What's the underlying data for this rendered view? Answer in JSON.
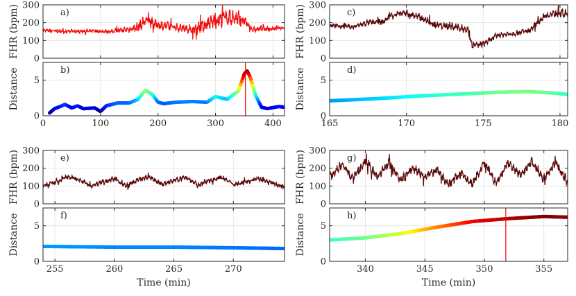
{
  "chart_data": {
    "type": "line",
    "figure": "fetal heart rate traces and trajectory distances",
    "panels": [
      {
        "id": "a",
        "label": "a)",
        "kind": "fhr",
        "color": "#f20d0d",
        "xlim": [
          0,
          420
        ],
        "ylim": [
          0,
          300
        ],
        "xticks": [
          0,
          100,
          200,
          300,
          400
        ],
        "yticks": [
          0,
          100,
          200,
          300
        ],
        "show_xtick_labels": false,
        "ylabel": "FHR (bpm)",
        "xlabel": "",
        "fhr_trend": [
          [
            5,
            155
          ],
          [
            40,
            150
          ],
          [
            80,
            152
          ],
          [
            120,
            150
          ],
          [
            145,
            160
          ],
          [
            165,
            175
          ],
          [
            180,
            215
          ],
          [
            195,
            190
          ],
          [
            230,
            175
          ],
          [
            260,
            160
          ],
          [
            290,
            200
          ],
          [
            320,
            230
          ],
          [
            345,
            220
          ],
          [
            365,
            160
          ],
          [
            380,
            165
          ],
          [
            400,
            165
          ],
          [
            420,
            172
          ]
        ],
        "variability": [
          [
            5,
            15
          ],
          [
            120,
            15
          ],
          [
            150,
            30
          ],
          [
            175,
            55
          ],
          [
            200,
            40
          ],
          [
            250,
            30
          ],
          [
            280,
            60
          ],
          [
            340,
            75
          ],
          [
            360,
            25
          ],
          [
            420,
            10
          ]
        ],
        "vline": null
      },
      {
        "id": "b",
        "label": "b)",
        "kind": "distance",
        "colormap": "jet",
        "xlim": [
          0,
          420
        ],
        "ylim": [
          0,
          7.5
        ],
        "xticks": [
          0,
          100,
          200,
          300,
          400
        ],
        "yticks": [
          0,
          5
        ],
        "show_xtick_labels": true,
        "ylabel": "Distance",
        "xlabel": "",
        "values": [
          [
            10,
            0.3
          ],
          [
            20,
            1.0
          ],
          [
            30,
            1.3
          ],
          [
            38,
            1.6
          ],
          [
            50,
            1.1
          ],
          [
            60,
            1.4
          ],
          [
            70,
            1.0
          ],
          [
            90,
            1.1
          ],
          [
            100,
            0.6
          ],
          [
            110,
            1.4
          ],
          [
            130,
            1.8
          ],
          [
            150,
            1.8
          ],
          [
            165,
            2.3
          ],
          [
            178,
            3.6
          ],
          [
            190,
            3.0
          ],
          [
            200,
            1.9
          ],
          [
            210,
            1.7
          ],
          [
            230,
            1.9
          ],
          [
            260,
            2.0
          ],
          [
            285,
            1.9
          ],
          [
            300,
            2.7
          ],
          [
            320,
            2.3
          ],
          [
            340,
            3.5
          ],
          [
            350,
            5.9
          ],
          [
            355,
            6.3
          ],
          [
            360,
            5.5
          ],
          [
            370,
            2.8
          ],
          [
            380,
            1.2
          ],
          [
            390,
            1.0
          ],
          [
            410,
            1.3
          ],
          [
            420,
            1.2
          ]
        ],
        "cmin": 0.5,
        "cmax": 6.3,
        "vline": 352
      },
      {
        "id": "c",
        "label": "c)",
        "kind": "fhr",
        "color": "#5a0a0a",
        "xlim": [
          165,
          180.5
        ],
        "ylim": [
          0,
          300
        ],
        "xticks": [
          165,
          170,
          175,
          180
        ],
        "yticks": [
          0,
          100,
          200,
          300
        ],
        "show_xtick_labels": false,
        "ylabel": "FHR (bpm)",
        "xlabel": "",
        "fhr_trend": [
          [
            165,
            185
          ],
          [
            166.5,
            175
          ],
          [
            167.5,
            200
          ],
          [
            168.5,
            205
          ],
          [
            169,
            240
          ],
          [
            170,
            255
          ],
          [
            171,
            225
          ],
          [
            172,
            185
          ],
          [
            173,
            180
          ],
          [
            174,
            160
          ],
          [
            174.3,
            70
          ],
          [
            175,
            80
          ],
          [
            176,
            130
          ],
          [
            177,
            140
          ],
          [
            178,
            155
          ],
          [
            179,
            240
          ],
          [
            180,
            255
          ],
          [
            180.5,
            245
          ]
        ],
        "variability": [
          [
            165,
            20
          ],
          [
            170,
            30
          ],
          [
            174,
            35
          ],
          [
            176,
            20
          ],
          [
            178,
            25
          ],
          [
            180.5,
            40
          ]
        ],
        "vline": null
      },
      {
        "id": "d",
        "label": "d)",
        "kind": "distance",
        "colormap": "jet",
        "xlim": [
          165,
          180.5
        ],
        "ylim": [
          0,
          7.5
        ],
        "xticks": [
          165,
          170,
          175,
          180
        ],
        "yticks": [
          0,
          5
        ],
        "xtick_labels": [
          "165",
          "170",
          "175",
          "180"
        ],
        "show_xtick_labels": true,
        "ylabel": "Distance",
        "xlabel": "",
        "values": [
          [
            165,
            2.1
          ],
          [
            168,
            2.4
          ],
          [
            171,
            2.8
          ],
          [
            174,
            3.1
          ],
          [
            176,
            3.3
          ],
          [
            178,
            3.4
          ],
          [
            179.5,
            3.2
          ],
          [
            180.5,
            3.0
          ]
        ],
        "cmin": 0.5,
        "cmax": 6.3,
        "vline": null
      },
      {
        "id": "e",
        "label": "e)",
        "kind": "fhr",
        "color": "#5a0a0a",
        "xlim": [
          254,
          274.3
        ],
        "ylim": [
          0,
          300
        ],
        "xticks": [
          255,
          260,
          265,
          270
        ],
        "yticks": [
          0,
          100,
          200,
          300
        ],
        "show_xtick_labels": false,
        "ylabel": "FHR (bpm)",
        "xlabel": "",
        "fhr_trend": [
          [
            254,
            100
          ],
          [
            255,
            120
          ],
          [
            256,
            150
          ],
          [
            257,
            140
          ],
          [
            258,
            100
          ],
          [
            259,
            125
          ],
          [
            260,
            140
          ],
          [
            261,
            100
          ],
          [
            262,
            135
          ],
          [
            263,
            150
          ],
          [
            264,
            110
          ],
          [
            265,
            130
          ],
          [
            266,
            150
          ],
          [
            267,
            105
          ],
          [
            268,
            130
          ],
          [
            269,
            150
          ],
          [
            270,
            110
          ],
          [
            271,
            120
          ],
          [
            272,
            145
          ],
          [
            273,
            120
          ],
          [
            274.3,
            95
          ]
        ],
        "variability": [
          [
            254,
            20
          ],
          [
            274.3,
            20
          ]
        ],
        "vline": null
      },
      {
        "id": "f",
        "label": "f)",
        "kind": "distance",
        "colormap": "jet",
        "xlim": [
          254,
          274.3
        ],
        "ylim": [
          0,
          7.5
        ],
        "xticks": [
          255,
          260,
          265,
          270
        ],
        "yticks": [
          0,
          5
        ],
        "show_xtick_labels": true,
        "ylabel": "Distance",
        "xlabel": "Time (min)",
        "values": [
          [
            254,
            2.1
          ],
          [
            260,
            2.0
          ],
          [
            265,
            2.0
          ],
          [
            270,
            1.9
          ],
          [
            274.3,
            1.8
          ]
        ],
        "cmin": 0.5,
        "cmax": 6.3,
        "vline": null
      },
      {
        "id": "g",
        "label": "g)",
        "kind": "fhr",
        "color": "#5a0a0a",
        "xlim": [
          337,
          357
        ],
        "ylim": [
          0,
          300
        ],
        "xticks": [
          340,
          345,
          350,
          355
        ],
        "yticks": [
          0,
          100,
          200,
          300
        ],
        "show_xtick_labels": false,
        "ylabel": "FHR (bpm)",
        "xlabel": "",
        "fhr_trend": [
          [
            337,
            150
          ],
          [
            338,
            220
          ],
          [
            339,
            140
          ],
          [
            340,
            240
          ],
          [
            341,
            150
          ],
          [
            342,
            230
          ],
          [
            343,
            130
          ],
          [
            344,
            200
          ],
          [
            345,
            150
          ],
          [
            346,
            190
          ],
          [
            347,
            110
          ],
          [
            348,
            170
          ],
          [
            349,
            110
          ],
          [
            350,
            230
          ],
          [
            351,
            110
          ],
          [
            352,
            230
          ],
          [
            353,
            160
          ],
          [
            354,
            240
          ],
          [
            355,
            140
          ],
          [
            356,
            230
          ],
          [
            357,
            120
          ]
        ],
        "variability": [
          [
            337,
            40
          ],
          [
            357,
            40
          ]
        ],
        "vline": null
      },
      {
        "id": "h",
        "label": "h)",
        "kind": "distance",
        "colormap": "jet",
        "xlim": [
          337,
          357
        ],
        "ylim": [
          0,
          7.5
        ],
        "xticks": [
          340,
          345,
          350,
          355
        ],
        "yticks": [
          0,
          5
        ],
        "show_xtick_labels": true,
        "ylabel": "Distance",
        "xlabel": "Time (min)",
        "values": [
          [
            337,
            3.0
          ],
          [
            340,
            3.3
          ],
          [
            343,
            3.9
          ],
          [
            346,
            4.8
          ],
          [
            349,
            5.6
          ],
          [
            352,
            6.0
          ],
          [
            355,
            6.3
          ],
          [
            357,
            6.2
          ]
        ],
        "cmin": 0.5,
        "cmax": 6.3,
        "vline": 351.8
      }
    ]
  }
}
